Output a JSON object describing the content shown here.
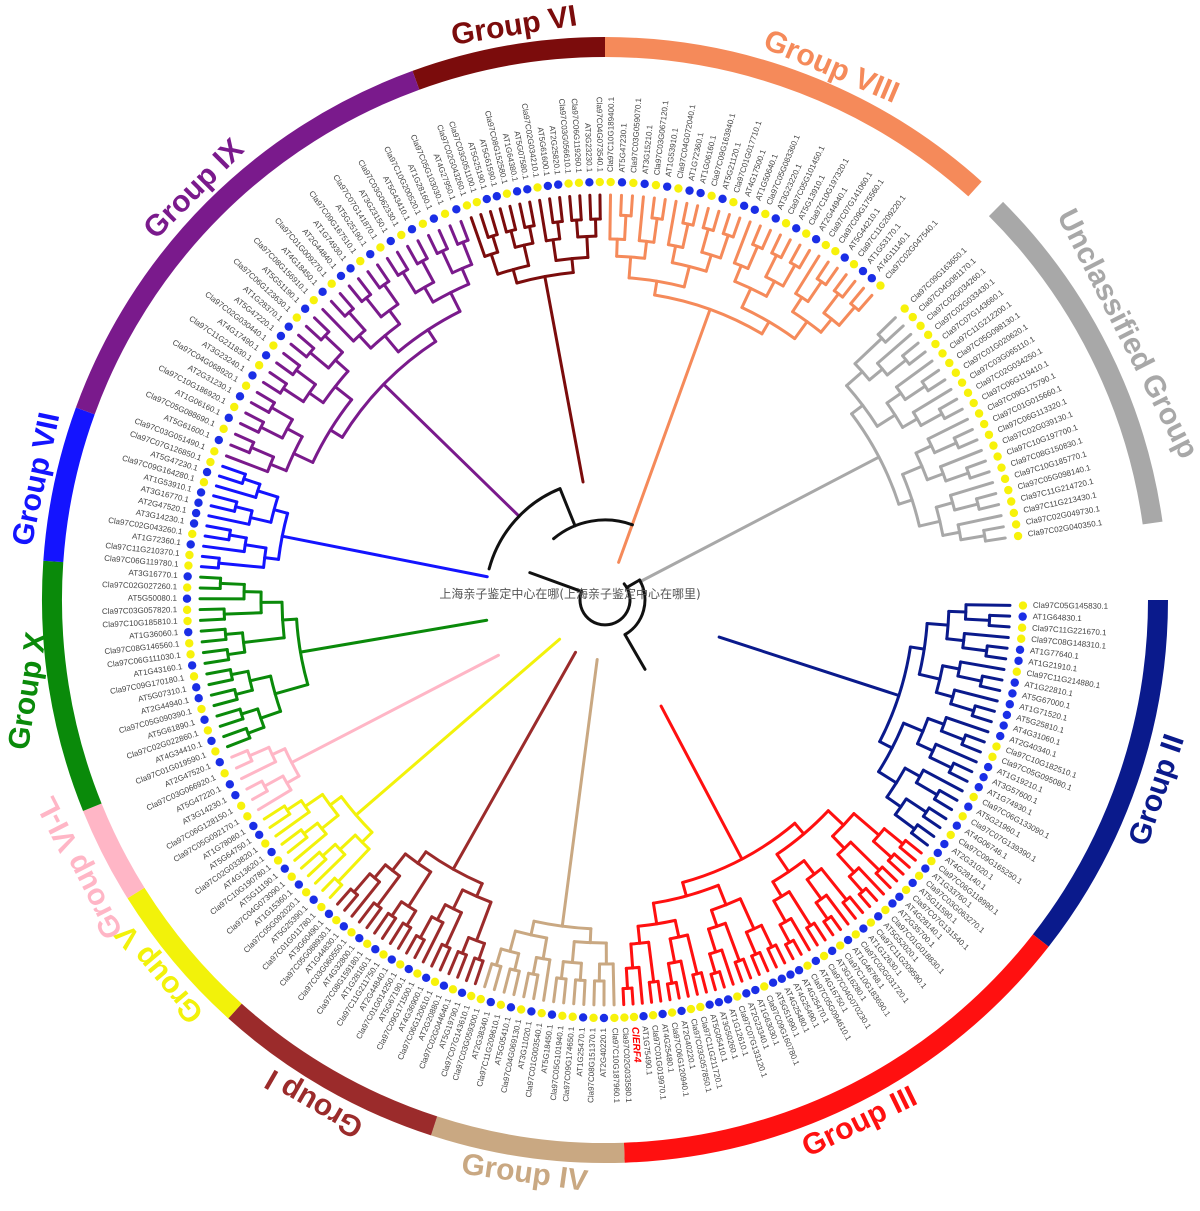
{
  "watermark": "上海亲子鉴定中心在哪(上海亲子鉴定中心在哪里)",
  "highlight_gene": "ClERF4",
  "groups": [
    {
      "key": "VI",
      "label": "Group VI",
      "color": "#7b0c0c"
    },
    {
      "key": "VIII",
      "label": "Group VIII",
      "color": "#f58a5a"
    },
    {
      "key": "UNC",
      "label": "Unclassified Group",
      "color": "#a8a8a8"
    },
    {
      "key": "II",
      "label": "Group II",
      "color": "#0a1a8c"
    },
    {
      "key": "III",
      "label": "Group III",
      "color": "#ff1010"
    },
    {
      "key": "IV",
      "label": "Group IV",
      "color": "#c9a882"
    },
    {
      "key": "I",
      "label": "Group I",
      "color": "#9b2b2b"
    },
    {
      "key": "V",
      "label": "Group V",
      "color": "#f2f20a"
    },
    {
      "key": "VIL",
      "label": "Group VI-L",
      "color": "#ffb6c6"
    },
    {
      "key": "X",
      "label": "Group X",
      "color": "#0a8a0a"
    },
    {
      "key": "VII",
      "label": "Group VII",
      "color": "#1414ff"
    },
    {
      "key": "IX",
      "label": "Group IX",
      "color": "#7a1a8c"
    }
  ],
  "leaves": {
    "VI": [
      "Cla97C02G043260.1",
      "Cla97C03G051100.1",
      "AT5G25190.1",
      "AT5G61590.1",
      "Cla97C08G152580.1",
      "AT1G64380.1",
      "AT5G07580.1",
      "Cla97C02G034210.1",
      "AT5G61600.1",
      "AT2G25820.1",
      "Cla97C03G056610.1",
      "Cla97C06G119260.1",
      "AT3G23230.1",
      "Cla97C04G073540.1"
    ],
    "VIII": [
      "Cla97C10G189400.1",
      "AT5G47230.1",
      "Cla97C03G059070.1",
      "AT3G15210.1",
      "Cla97C03G067120.1",
      "AT1G53910.1",
      "Cla97C04G072040.1",
      "AT1G72360.1",
      "AT1G06160.1",
      "Cla97C09G163940.1",
      "AT5G21120.1",
      "Cla97C01G017710.1",
      "AT4G17500.1",
      "AT1G50640.1",
      "Cla97C05G083360.1",
      "AT3G23220.1",
      "Cla97C05G101450.1",
      "AT5G13910.1",
      "Cla97C10G197320.1",
      "AT2G44940.1",
      "Cla97C07G141060.1",
      "Cla97C09G175560.1",
      "AT5G44210.1",
      "Cla97C11G209220.1",
      "AT1G53170.1",
      "AT4G11140.1",
      "Cla97C02G047540.1"
    ],
    "UNC": [
      "Cla97C09G163650.1",
      "Cla97C04G081170.1",
      "Cla97C02G034260.1",
      "Cla97C02G033430.1",
      "Cla97C07G143660.1",
      "Cla97C11G212200.1",
      "Cla97C05G098130.1",
      "Cla97C01G020620.1",
      "Cla97C03G065110.1",
      "Cla97C02G034250.1",
      "Cla97C06G119410.1",
      "Cla97C09G175790.1",
      "Cla97C01G015660.1",
      "Cla97C06G113320.1",
      "Cla97C02G039130.1",
      "Cla97C10G197700.1",
      "Cla97C08G150830.1",
      "Cla97C10G185770.1",
      "Cla97C05G098140.1",
      "Cla97C11G214720.1",
      "Cla97C11G213430.1",
      "Cla97C02G049730.1",
      "Cla97C02G040350.1"
    ],
    "II": [
      "Cla97C05G145830.1",
      "AT1G64830.1",
      "Cla97C11G221670.1",
      "Cla97C08G148310.1",
      "AT1G77640.1",
      "AT1G21910.1",
      "Cla97C11G214880.1",
      "AT1G22810.1",
      "AT5G67000.1",
      "AT1G71520.1",
      "AT5G25810.1",
      "AT4G31060.1",
      "AT2G40340.1",
      "Cla97C10G182510.1",
      "Cla97C05G095080.1",
      "AT1G19210.1",
      "AT3G57600.1",
      "AT1G74930.1",
      "Cla97C06G133090.1",
      "AT5G21960.1",
      "Cla97C07G139390.1",
      "AT4G06746.1",
      "Cla97C09G165250.1",
      "AT2G31020.1",
      "AT4G28140.1"
    ],
    "III": [
      "Cla97C06G118990.1",
      "AT1G33760.1",
      "Cla97C03G063270.1",
      "AT5G11590.1",
      "Cla97C07G131540.1",
      "AT4G28140.1",
      "AT2G35700.1",
      "Cla97C01G018830.1",
      "AT5G52020.1",
      "Cla97C11G209590.1",
      "AT1G12630.1",
      "Cla97C02G031720.1",
      "AT1G46768.1",
      "Cla97C10G183690.1",
      "AT3G16280.1",
      "Cla97C04G070230.1",
      "AT4G16750.1",
      "Cla97C05G094610.1",
      "AT4G25470.1",
      "AT4G25490.1",
      "AT4G25480.1",
      "AT5G51990.1",
      "Cla97C09G160780.1",
      "AT1G63030.1",
      "AT2G23340.1",
      "Cla97C07G133120.1",
      "AT1G12610.1",
      "AT3G50260.1",
      "AT5G05410.1",
      "Cla97C11G211720.1",
      "Cla97C03G057850.1",
      "AT2G40220.1",
      "Cla97C06G120940.1",
      "AT4G25480.1",
      "Cla97C01G019970.1",
      "AT1G75490.1",
      "ClERF4",
      "Cla97C02G033580.1"
    ],
    "IV": [
      "Cla97C10G187960.1",
      "AT2G40220.1",
      "Cla97C08G151370.1",
      "AT1G25470.1",
      "Cla97C09G174650.1",
      "Cla97C05G101940.1",
      "AT5G18450.1",
      "Cla97C01G003540.1",
      "AT3G11020.1",
      "Cla97C04G069130.1",
      "AT5G05410.1",
      "Cla97C11G209610.1",
      "AT2G38340.1",
      "Cla97C03G059300.1"
    ],
    "I": [
      "Cla97C07G143610.1",
      "AT5G19790.1",
      "Cla97C02G044640.1",
      "AT2G20880.1",
      "Cla97C06G120610.1",
      "AT4G36900.1",
      "Cla97C09G171500.1",
      "AT5G67190.1",
      "Cla97C01G014250.1",
      "AT2G44840.1",
      "Cla97C11G211750.1",
      "AT1G28160.1",
      "Cla97C08G159180.1",
      "AT4G32800.1",
      "Cla97C03G060550.1",
      "AT1G44830.1",
      "Cla97C05G088930.1",
      "AT3G60490.1"
    ],
    "V": [
      "Cla97C01G011780.1",
      "AT5G25390.1",
      "Cla97C05G092020.1",
      "AT1G15360.1",
      "Cla97C04G073090.1",
      "AT5G11190.1",
      "Cla97C10G190780.1",
      "AT4G13620.1",
      "Cla97C02G033820.1",
      "AT5G64750.1",
      "AT1G78080.1"
    ],
    "VIL": [
      "Cla97C05G092170.1",
      "Cla97C06G128150.1",
      "AT3G14230.1",
      "AT5G47220.1",
      "Cla97C03G066920.1",
      "AT2G47520.1"
    ],
    "X": [
      "Cla97C01G019590.1",
      "AT4G34410.1",
      "Cla97C02G022860.1",
      "AT5G61890.1",
      "Cla97C05G090390.1",
      "AT2G44940.1",
      "AT5G07310.1",
      "Cla97C09G170180.1",
      "AT1G43160.1",
      "Cla97C06G111030.1",
      "Cla97C08G146560.1",
      "AT1G36060.1",
      "Cla97C10G185810.1",
      "Cla97C03G057820.1",
      "AT5G50080.1",
      "Cla97C02G027260.1",
      "AT3G16770.1"
    ],
    "VII": [
      "Cla97C06G119780.1",
      "Cla97C11G210370.1",
      "AT1G72360.1",
      "Cla97C02G043260.1",
      "AT3G14230.1",
      "AT2G47520.1",
      "AT3G16770.1",
      "AT1G53910.1",
      "Cla97C09G164280.1",
      "AT5G47230.1",
      "Cla97C07G126850.1"
    ],
    "IX": [
      "Cla97C03G051490.1",
      "AT5G61600.1",
      "Cla97C05G088690.1",
      "AT1G06160.1",
      "Cla97C10G186920.1",
      "AT2G31230.1",
      "Cla97C04G068920.1",
      "AT3G23240.1",
      "Cla97C11G211830.1",
      "AT4G17490.1",
      "Cla97C02G030440.1",
      "AT5G47220.1",
      "AT1G28370.1",
      "Cla97C06G123630.1",
      "AT5G51190.1",
      "Cla97C08G156910.1",
      "AT4G18450.1",
      "Cla97C01G009270.1",
      "AT2G44840.1",
      "AT1G74930.1",
      "Cla97C09G167510.1",
      "AT5G25190.1",
      "Cla97C07G141870.1",
      "AT3G23150.1",
      "Cla97C03G062330.1",
      "AT5G43410.1",
      "Cla97C10G200520.1",
      "AT1G28160.1",
      "Cla97C05G103030.1",
      "AT4G27950.1"
    ]
  }
}
